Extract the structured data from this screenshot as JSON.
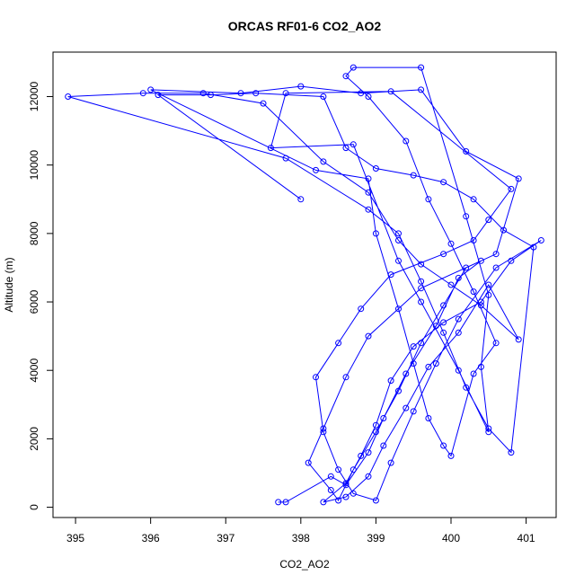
{
  "chart_data": {
    "type": "line",
    "title": "ORCAS RF01-6 CO2_AO2",
    "xlabel": "CO2_AO2",
    "ylabel": "Altitude (m)",
    "xlim": [
      394.7,
      401.4
    ],
    "ylim": [
      -300,
      13300
    ],
    "xticks": [
      395,
      396,
      397,
      398,
      399,
      400,
      401
    ],
    "yticks": [
      0,
      2000,
      4000,
      6000,
      8000,
      10000,
      12000
    ],
    "grid": false,
    "legend": "none",
    "color": "#0000ff",
    "marker": "open-circle",
    "series": [
      {
        "points": [
          [
            397.7,
            150
          ],
          [
            397.8,
            150
          ],
          [
            398.4,
            900
          ],
          [
            398.6,
            650
          ],
          [
            398.9,
            1600
          ],
          [
            399.1,
            2600
          ],
          [
            399.4,
            3900
          ],
          [
            399.8,
            5300
          ],
          [
            400.1,
            6700
          ],
          [
            400.4,
            7200
          ],
          [
            399.6,
            6400
          ],
          [
            398.9,
            5000
          ],
          [
            398.6,
            3800
          ],
          [
            398.3,
            2300
          ],
          [
            398.1,
            1300
          ],
          [
            398.4,
            500
          ],
          [
            398.5,
            200
          ],
          [
            398.7,
            1100
          ],
          [
            399.0,
            2200
          ],
          [
            399.3,
            3400
          ],
          [
            399.6,
            4800
          ],
          [
            399.9,
            5900
          ],
          [
            400.2,
            7000
          ],
          [
            400.6,
            7400
          ],
          [
            400.9,
            9600
          ],
          [
            400.2,
            10400
          ],
          [
            399.6,
            12200
          ],
          [
            398.8,
            12100
          ],
          [
            398.0,
            12300
          ],
          [
            397.2,
            12100
          ],
          [
            396.0,
            12200
          ],
          [
            398.2,
            9850
          ],
          [
            398.9,
            9600
          ],
          [
            399.0,
            8000
          ],
          [
            399.3,
            5800
          ],
          [
            399.5,
            4200
          ],
          [
            399.7,
            2600
          ],
          [
            399.9,
            1800
          ],
          [
            400.0,
            1500
          ],
          [
            400.3,
            3900
          ],
          [
            400.6,
            4800
          ],
          [
            400.3,
            6300
          ],
          [
            400.0,
            7700
          ],
          [
            399.7,
            9000
          ],
          [
            399.4,
            10700
          ],
          [
            398.9,
            12000
          ],
          [
            398.6,
            12600
          ],
          [
            398.7,
            12850
          ],
          [
            399.6,
            12850
          ],
          [
            400.2,
            8500
          ],
          [
            400.5,
            6200
          ],
          [
            400.4,
            4100
          ],
          [
            400.5,
            2200
          ],
          [
            400.1,
            4000
          ],
          [
            399.6,
            6000
          ],
          [
            399.3,
            7200
          ],
          [
            398.7,
            10600
          ],
          [
            397.6,
            10500
          ],
          [
            397.8,
            12100
          ],
          [
            399.2,
            12150
          ],
          [
            400.8,
            9300
          ],
          [
            400.5,
            8400
          ],
          [
            400.3,
            7800
          ],
          [
            399.9,
            7400
          ],
          [
            399.2,
            6800
          ],
          [
            398.8,
            5800
          ],
          [
            398.5,
            4800
          ],
          [
            398.2,
            3800
          ],
          [
            398.3,
            2200
          ],
          [
            398.5,
            1100
          ],
          [
            398.7,
            400
          ],
          [
            399.0,
            200
          ],
          [
            399.2,
            1300
          ],
          [
            399.5,
            2800
          ],
          [
            399.8,
            4200
          ],
          [
            400.1,
            5500
          ],
          [
            400.6,
            7000
          ],
          [
            401.2,
            7800
          ],
          [
            400.8,
            7200
          ],
          [
            400.4,
            6000
          ],
          [
            399.9,
            5400
          ],
          [
            399.5,
            4700
          ],
          [
            399.2,
            3700
          ],
          [
            399.0,
            2400
          ],
          [
            398.8,
            1500
          ],
          [
            398.6,
            700
          ],
          [
            398.3,
            150
          ],
          [
            398.6,
            300
          ],
          [
            398.9,
            900
          ],
          [
            399.1,
            1800
          ],
          [
            399.4,
            2900
          ],
          [
            399.7,
            4100
          ],
          [
            400.1,
            5100
          ],
          [
            400.5,
            6500
          ],
          [
            400.9,
            4900
          ],
          [
            400.4,
            5900
          ],
          [
            400.0,
            6500
          ],
          [
            399.6,
            7100
          ],
          [
            399.3,
            7800
          ],
          [
            398.9,
            9200
          ],
          [
            398.3,
            10100
          ],
          [
            397.5,
            11800
          ],
          [
            396.7,
            12100
          ],
          [
            395.9,
            12100
          ],
          [
            394.9,
            12000
          ],
          [
            397.8,
            10200
          ],
          [
            398.9,
            8700
          ],
          [
            399.3,
            8000
          ],
          [
            399.6,
            6600
          ],
          [
            399.9,
            5100
          ],
          [
            400.2,
            3500
          ],
          [
            400.5,
            2300
          ],
          [
            400.8,
            1600
          ],
          [
            401.1,
            7600
          ],
          [
            400.7,
            8100
          ],
          [
            400.3,
            9000
          ],
          [
            399.9,
            9500
          ],
          [
            399.5,
            9700
          ],
          [
            399.0,
            9900
          ],
          [
            398.6,
            10500
          ],
          [
            398.3,
            12000
          ],
          [
            397.4,
            12100
          ],
          [
            396.8,
            12050
          ],
          [
            396.1,
            12050
          ],
          [
            398.0,
            9000
          ]
        ]
      }
    ]
  }
}
